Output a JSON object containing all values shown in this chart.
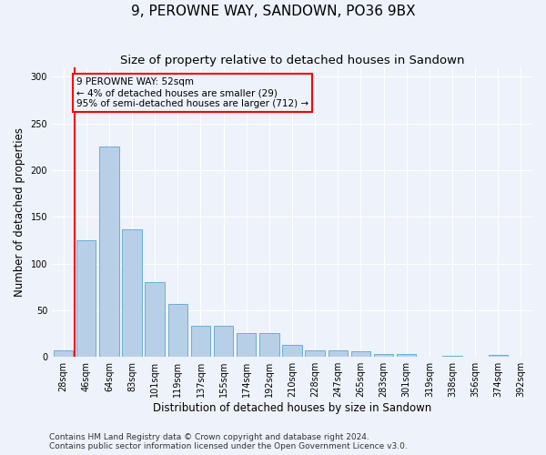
{
  "title": "9, PEROWNE WAY, SANDOWN, PO36 9BX",
  "subtitle": "Size of property relative to detached houses in Sandown",
  "xlabel": "Distribution of detached houses by size in Sandown",
  "ylabel": "Number of detached properties",
  "categories": [
    "28sqm",
    "46sqm",
    "64sqm",
    "83sqm",
    "101sqm",
    "119sqm",
    "137sqm",
    "155sqm",
    "174sqm",
    "192sqm",
    "210sqm",
    "228sqm",
    "247sqm",
    "265sqm",
    "283sqm",
    "301sqm",
    "319sqm",
    "338sqm",
    "356sqm",
    "374sqm",
    "392sqm"
  ],
  "values": [
    7,
    125,
    225,
    137,
    80,
    57,
    33,
    33,
    26,
    26,
    13,
    7,
    7,
    6,
    3,
    3,
    0,
    1,
    0,
    2,
    0
  ],
  "bar_color": "#b8cfe8",
  "bar_edge_color": "#6aaed6",
  "annotation_title": "9 PEROWNE WAY: 52sqm",
  "annotation_line2": "← 4% of detached houses are smaller (29)",
  "annotation_line3": "95% of semi-detached houses are larger (712) →",
  "ylim": [
    0,
    310
  ],
  "yticks": [
    0,
    50,
    100,
    150,
    200,
    250,
    300
  ],
  "footnote1": "Contains HM Land Registry data © Crown copyright and database right 2024.",
  "footnote2": "Contains public sector information licensed under the Open Government Licence v3.0.",
  "background_color": "#eef2fa",
  "grid_color": "#ffffff",
  "title_fontsize": 11,
  "subtitle_fontsize": 9.5,
  "axis_label_fontsize": 8.5,
  "tick_fontsize": 7,
  "footnote_fontsize": 6.5
}
